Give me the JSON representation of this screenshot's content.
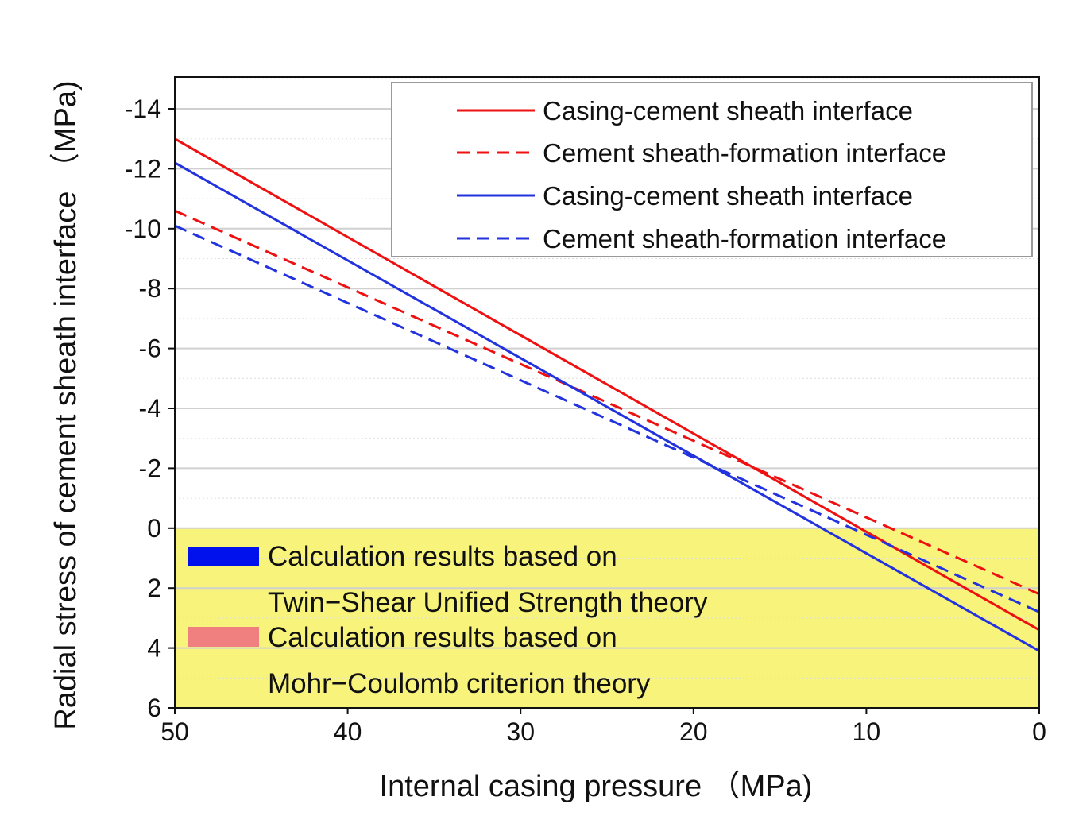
{
  "chart_data": {
    "type": "line",
    "title": "",
    "xlabel": "Internal casing pressure （MPa)",
    "ylabel": "Radial stress of cement sheath interface （MPa)",
    "xlim": [
      50,
      0
    ],
    "ylim": [
      6,
      -15
    ],
    "x_ticks": [
      "50",
      "40",
      "30",
      "20",
      "10",
      "0"
    ],
    "y_ticks": [
      "-14",
      "-12",
      "-10",
      "-8",
      "-6",
      "-4",
      "-2",
      "0",
      "2",
      "4",
      "6"
    ],
    "grid": true,
    "legend_position": "top-right",
    "series": [
      {
        "name": "Casing-cement sheath interface",
        "color": "#ee1111",
        "dash": "solid",
        "x": [
          50,
          0
        ],
        "y": [
          -13.0,
          3.4
        ]
      },
      {
        "name": "Cement sheath-formation interface",
        "color": "#ee1111",
        "dash": "dashed",
        "x": [
          50,
          0
        ],
        "y": [
          -10.6,
          2.2
        ]
      },
      {
        "name": "Casing-cement sheath interface",
        "color": "#2233dd",
        "dash": "solid",
        "x": [
          50,
          0
        ],
        "y": [
          -12.2,
          4.1
        ]
      },
      {
        "name": "Cement sheath-formation interface",
        "color": "#2233dd",
        "dash": "dashed",
        "x": [
          50,
          0
        ],
        "y": [
          -10.1,
          2.8
        ]
      }
    ],
    "shaded_region": {
      "y_from": 0,
      "y_to": 6,
      "color": "#f8f37a"
    },
    "annotations": [
      {
        "swatch_color": "#0011ee",
        "line1": "Calculation results based on",
        "line2": "Twin−Shear Unified Strength theory"
      },
      {
        "swatch_color": "#f08080",
        "line1": "Calculation results based on",
        "line2": "Mohr−Coulomb criterion theory"
      }
    ]
  }
}
